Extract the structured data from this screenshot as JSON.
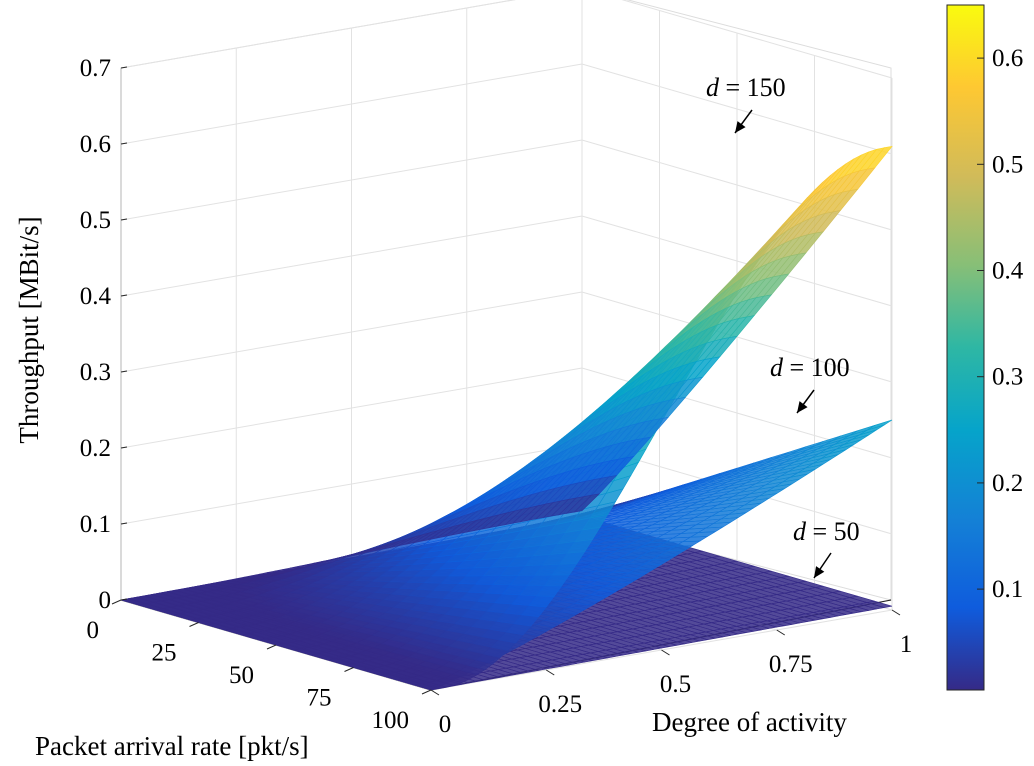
{
  "chart_data": {
    "type": "surface",
    "zlabel": "Throughput [MBit/s]",
    "xlabel": "Packet arrival rate [pkt/s]",
    "ylabel": "Degree of activity",
    "z_ticks": [
      "0",
      "0.1",
      "0.2",
      "0.3",
      "0.4",
      "0.5",
      "0.6",
      "0.7"
    ],
    "x_ticks": [
      "0",
      "25",
      "50",
      "75",
      "100"
    ],
    "y_ticks": [
      "0",
      "0.25",
      "0.5",
      "0.75",
      "1"
    ],
    "xlim": [
      0,
      100
    ],
    "ylim": [
      0,
      1
    ],
    "zlim": [
      0,
      0.7
    ],
    "grid": true,
    "colormap": "parula",
    "colorbar": {
      "ticks": [
        "0.1",
        "0.2",
        "0.3",
        "0.4",
        "0.5",
        "0.6"
      ],
      "clim": [
        0.005,
        0.65
      ]
    },
    "series": [
      {
        "label_var": "d",
        "label_eq": " = ",
        "label_value": "150",
        "peak_throughput": 0.61,
        "saturation_rate": 100
      },
      {
        "label_var": "d",
        "label_eq": " = ",
        "label_value": "100",
        "peak_throughput": 0.25,
        "saturation_rate": 100
      },
      {
        "label_var": "d",
        "label_eq": " = ",
        "label_value": "50",
        "peak_throughput": 0.005,
        "saturation_rate": 100
      }
    ]
  }
}
